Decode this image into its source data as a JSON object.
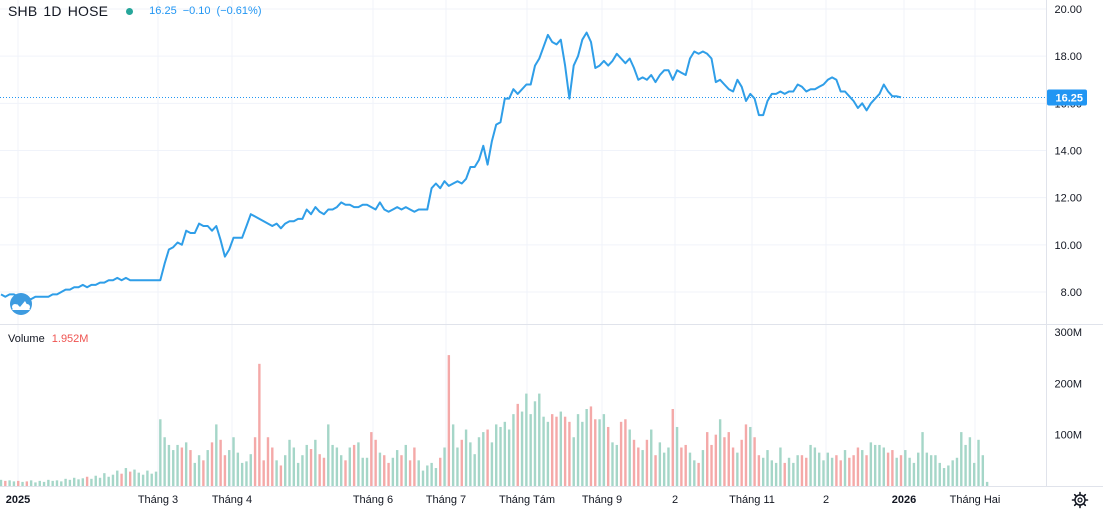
{
  "header": {
    "symbol": "SHB",
    "interval": "1D",
    "exchange": "HOSE",
    "status_icon": "live-dot-icon",
    "last": "16.25",
    "change": "−0.10",
    "change_pct": "(−0.61%)"
  },
  "volume_legend": {
    "label": "Volume",
    "value": "1.952M"
  },
  "price_axis": {
    "ticks": [
      "20.00",
      "18.00",
      "16.00",
      "14.00",
      "12.00",
      "10.00",
      "8.00"
    ]
  },
  "volume_axis": {
    "ticks": [
      "300M",
      "200M",
      "100M"
    ]
  },
  "last_price_label": "16.25",
  "time_axis": {
    "labels": [
      "2025",
      "Tháng 3",
      "Tháng 4",
      "Tháng 6",
      "Tháng 7",
      "Tháng Tám",
      "Tháng 9",
      "2",
      "Tháng 11",
      "2",
      "2026",
      "Tháng Hai"
    ]
  },
  "icons": {
    "logo": "cloud-logo-icon",
    "settings": "gear-icon"
  },
  "colors": {
    "line": "#2f9ee8",
    "up": "#26a69a",
    "down": "#ef5350",
    "text": "#131722",
    "accent": "#2196f3"
  },
  "chart_data": [
    {
      "type": "line",
      "title": "SHB 1D HOSE",
      "ylim": [
        7.1,
        20.3
      ],
      "y_ticks": [
        8,
        10,
        12,
        14,
        16,
        18,
        20
      ],
      "last_value": 16.25,
      "grid": true,
      "series": [
        {
          "values": [
            7.9,
            7.8,
            7.9,
            7.9,
            7.8,
            7.8,
            7.7,
            7.7,
            7.8,
            7.8,
            7.8,
            7.8,
            7.9,
            7.9,
            8.0,
            8.1,
            8.1,
            8.2,
            8.2,
            8.3,
            8.2,
            8.3,
            8.3,
            8.4,
            8.4,
            8.5,
            8.5,
            8.6,
            8.5,
            8.6,
            8.5,
            8.5,
            8.5,
            8.5,
            8.5,
            8.5,
            8.5,
            8.5,
            9.2,
            9.8,
            9.9,
            10.1,
            10.0,
            10.6,
            10.5,
            10.5,
            10.9,
            10.8,
            10.8,
            10.6,
            10.8,
            10.2,
            9.5,
            9.8,
            10.3,
            10.3,
            10.3,
            10.8,
            11.3,
            11.2,
            11.1,
            11.0,
            10.9,
            10.8,
            10.9,
            10.7,
            10.9,
            11.0,
            11.0,
            11.1,
            11.1,
            11.5,
            11.3,
            11.6,
            11.4,
            11.3,
            11.5,
            11.5,
            11.6,
            11.8,
            11.7,
            11.7,
            11.6,
            11.6,
            11.7,
            11.7,
            11.6,
            11.5,
            11.8,
            11.5,
            11.4,
            11.5,
            11.6,
            11.5,
            11.6,
            11.5,
            11.4,
            11.5,
            11.5,
            11.5,
            12.4,
            12.6,
            12.4,
            12.7,
            12.5,
            12.6,
            12.7,
            12.6,
            12.8,
            13.3,
            13.3,
            13.6,
            14.2,
            13.4,
            14.4,
            15.1,
            15.2,
            16.2,
            16.2,
            16.6,
            16.4,
            16.6,
            16.8,
            16.8,
            17.6,
            17.9,
            18.4,
            18.9,
            18.6,
            18.5,
            18.7,
            17.6,
            16.2,
            17.6,
            18.0,
            18.7,
            19.0,
            18.6,
            17.5,
            17.6,
            17.8,
            17.6,
            17.8,
            18.1,
            17.9,
            17.7,
            17.9,
            17.5,
            17.0,
            17.1,
            17.0,
            17.2,
            16.9,
            17.2,
            17.4,
            17.4,
            17.0,
            17.4,
            17.3,
            17.2,
            17.9,
            18.2,
            18.1,
            18.2,
            18.1,
            17.9,
            16.9,
            17.0,
            16.8,
            16.6,
            16.5,
            17.0,
            16.7,
            16.1,
            16.4,
            16.2,
            15.5,
            15.5,
            16.1,
            16.4,
            16.4,
            16.5,
            16.4,
            16.5,
            16.5,
            16.8,
            16.7,
            16.5,
            16.6,
            16.6,
            16.7,
            16.8,
            17.0,
            17.1,
            17.0,
            16.5,
            16.5,
            16.3,
            16.1,
            15.8,
            16.0,
            15.7,
            16.0,
            16.2,
            16.4,
            16.8,
            16.5,
            16.3,
            16.3,
            16.25
          ]
        }
      ]
    },
    {
      "type": "bar",
      "title": "Volume",
      "ylim": [
        0,
        300
      ],
      "y_ticks": [
        100,
        200,
        300
      ],
      "y_unit": "M",
      "grid": false,
      "values": [
        12,
        10,
        11,
        9,
        10,
        8,
        9,
        11,
        7,
        10,
        8,
        12,
        10,
        11,
        9,
        14,
        12,
        16,
        13,
        15,
        18,
        14,
        20,
        16,
        25,
        18,
        22,
        30,
        24,
        35,
        28,
        32,
        26,
        22,
        30,
        24,
        28,
        130,
        95,
        80,
        70,
        80,
        75,
        85,
        70,
        45,
        60,
        50,
        70,
        85,
        120,
        90,
        60,
        70,
        95,
        65,
        45,
        48,
        62,
        95,
        238,
        50,
        95,
        75,
        50,
        40,
        60,
        90,
        75,
        45,
        60,
        80,
        72,
        90,
        62,
        55,
        120,
        80,
        75,
        60,
        50,
        75,
        80,
        85,
        55,
        55,
        105,
        90,
        65,
        60,
        45,
        55,
        70,
        60,
        80,
        50,
        75,
        50,
        30,
        40,
        45,
        35,
        55,
        75,
        255,
        120,
        75,
        90,
        110,
        85,
        62,
        95,
        105,
        110,
        85,
        120,
        115,
        125,
        110,
        140,
        160,
        145,
        180,
        140,
        165,
        180,
        135,
        125,
        140,
        135,
        145,
        135,
        125,
        95,
        140,
        125,
        150,
        155,
        130,
        130,
        140,
        115,
        85,
        80,
        125,
        130,
        110,
        90,
        75,
        70,
        90,
        110,
        60,
        85,
        65,
        75,
        150,
        115,
        75,
        80,
        65,
        50,
        45,
        70,
        105,
        80,
        100,
        130,
        95,
        105,
        75,
        65,
        90,
        120,
        115,
        95,
        60,
        55,
        70,
        50,
        45,
        75,
        45,
        55,
        45,
        60,
        60,
        55,
        80,
        75,
        65,
        50,
        65,
        55,
        60,
        50,
        70,
        55,
        60,
        75,
        70,
        60,
        85,
        80,
        80,
        75,
        65,
        70,
        55,
        60,
        70,
        55,
        45,
        65,
        105,
        65,
        60,
        60,
        45,
        35,
        40,
        50,
        55,
        105,
        80,
        95,
        45,
        90,
        60,
        8
      ],
      "colors": "down",
      "last_value": 1.952
    }
  ]
}
